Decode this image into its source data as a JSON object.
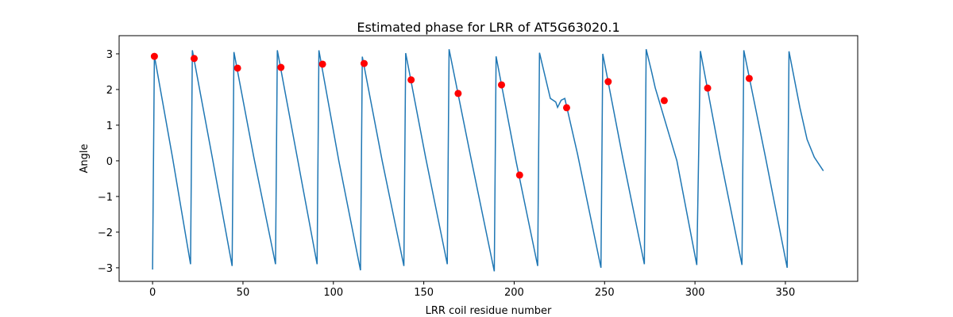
{
  "chart_data": {
    "type": "line",
    "title": "Estimated phase for LRR of AT5G63020.1",
    "xlabel": "LRR coil residue number",
    "ylabel": "Angle",
    "xlim": [
      -18.5,
      390
    ],
    "ylim": [
      -3.38,
      3.51
    ],
    "xticks": [
      0,
      50,
      100,
      150,
      200,
      250,
      300,
      350
    ],
    "yticks": [
      {
        "value": -3,
        "label": "−3"
      },
      {
        "value": -2,
        "label": "−2"
      },
      {
        "value": -1,
        "label": "−1"
      },
      0,
      1,
      2,
      3
    ],
    "line": {
      "color": "#1f77b4",
      "x": [
        0,
        1,
        11,
        21,
        22,
        33,
        44,
        45,
        56,
        68,
        69,
        80,
        91,
        92,
        103,
        115,
        116,
        127,
        139,
        140,
        151,
        163,
        164,
        176,
        189,
        190,
        201,
        213,
        214,
        220,
        223,
        224,
        226,
        228,
        235,
        248,
        249,
        260,
        272,
        273,
        276,
        278,
        290,
        301,
        303,
        314,
        326,
        327,
        339,
        351,
        352,
        358,
        362,
        366,
        371
      ],
      "values": [
        -3.05,
        2.95,
        0.1,
        -2.9,
        3.1,
        0.1,
        -2.95,
        3.05,
        0.1,
        -2.9,
        3.1,
        0.1,
        -2.9,
        3.1,
        0.0,
        -3.07,
        2.92,
        0.0,
        -2.95,
        3.02,
        0.1,
        -2.9,
        3.13,
        0.1,
        -3.1,
        2.93,
        0.0,
        -2.95,
        3.03,
        1.75,
        1.65,
        1.5,
        1.7,
        1.75,
        0.2,
        -3.0,
        3.0,
        0.1,
        -2.9,
        3.13,
        2.5,
        2.05,
        0.0,
        -2.92,
        3.08,
        0.1,
        -2.92,
        3.1,
        0.1,
        -3.0,
        3.07,
        1.5,
        0.6,
        0.1,
        -0.28
      ]
    },
    "points": {
      "color": "#ff0000",
      "x": [
        1,
        23,
        47,
        71,
        94,
        117,
        143,
        169,
        193,
        203,
        229,
        252,
        283,
        307,
        330
      ],
      "values": [
        2.93,
        2.87,
        2.6,
        2.62,
        2.71,
        2.73,
        2.27,
        1.89,
        2.13,
        -0.4,
        1.49,
        2.22,
        1.69,
        2.04,
        2.31
      ]
    }
  }
}
